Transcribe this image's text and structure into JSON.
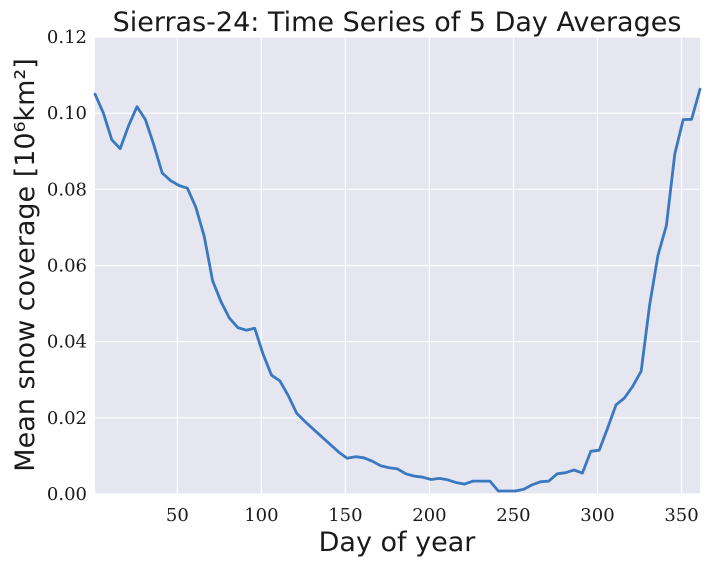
{
  "chart_data": {
    "type": "line",
    "title": "Sierras-24: Time Series of 5 Day Averages",
    "xlabel": "Day of year",
    "ylabel": "Mean snow coverage [10⁶km²]",
    "xlim": [
      1,
      361
    ],
    "ylim": [
      0.0,
      0.12
    ],
    "x_ticks": [
      50,
      100,
      150,
      200,
      250,
      300,
      350
    ],
    "x_tick_labels": [
      "50",
      "100",
      "150",
      "200",
      "250",
      "300",
      "350"
    ],
    "y_ticks": [
      0.0,
      0.02,
      0.04,
      0.06,
      0.08,
      0.1,
      0.12
    ],
    "y_tick_labels": [
      "0.00",
      "0.02",
      "0.04",
      "0.06",
      "0.08",
      "0.10",
      "0.12"
    ],
    "grid": true,
    "legend": "none",
    "color": "#3a78bf",
    "series": [
      {
        "x": [
          1,
          6,
          11,
          16,
          21,
          26,
          31,
          36,
          41,
          46,
          51,
          56,
          61,
          66,
          71,
          76,
          81,
          86,
          91,
          96,
          101,
          106,
          111,
          116,
          121,
          126,
          131,
          136,
          141,
          146,
          151,
          156,
          161,
          166,
          171,
          176,
          181,
          186,
          191,
          196,
          201,
          206,
          211,
          216,
          221,
          226,
          231,
          236,
          241,
          246,
          251,
          256,
          261,
          266,
          271,
          276,
          281,
          286,
          291,
          296,
          301,
          306,
          311,
          316,
          321,
          326,
          331,
          336,
          341,
          346,
          351,
          356,
          361
        ],
        "y": [
          0.105,
          0.1,
          0.093,
          0.0907,
          0.0967,
          0.1017,
          0.0983,
          0.0917,
          0.0843,
          0.0823,
          0.081,
          0.0803,
          0.0753,
          0.0677,
          0.056,
          0.0505,
          0.0462,
          0.0437,
          0.043,
          0.0435,
          0.0367,
          0.0312,
          0.0297,
          0.0258,
          0.0212,
          0.019,
          0.017,
          0.015,
          0.013,
          0.011,
          0.0094,
          0.0098,
          0.0095,
          0.0086,
          0.0074,
          0.0069,
          0.0066,
          0.0053,
          0.0047,
          0.0044,
          0.0038,
          0.0041,
          0.0037,
          0.003,
          0.0026,
          0.0034,
          0.0034,
          0.0034,
          0.0008,
          0.0008,
          0.0008,
          0.0012,
          0.0024,
          0.0032,
          0.0034,
          0.0053,
          0.0056,
          0.0063,
          0.0055,
          0.0112,
          0.0115,
          0.0173,
          0.0234,
          0.0252,
          0.0283,
          0.0323,
          0.0496,
          0.0627,
          0.0705,
          0.0893,
          0.0983,
          0.0984,
          0.1063
        ]
      }
    ]
  }
}
